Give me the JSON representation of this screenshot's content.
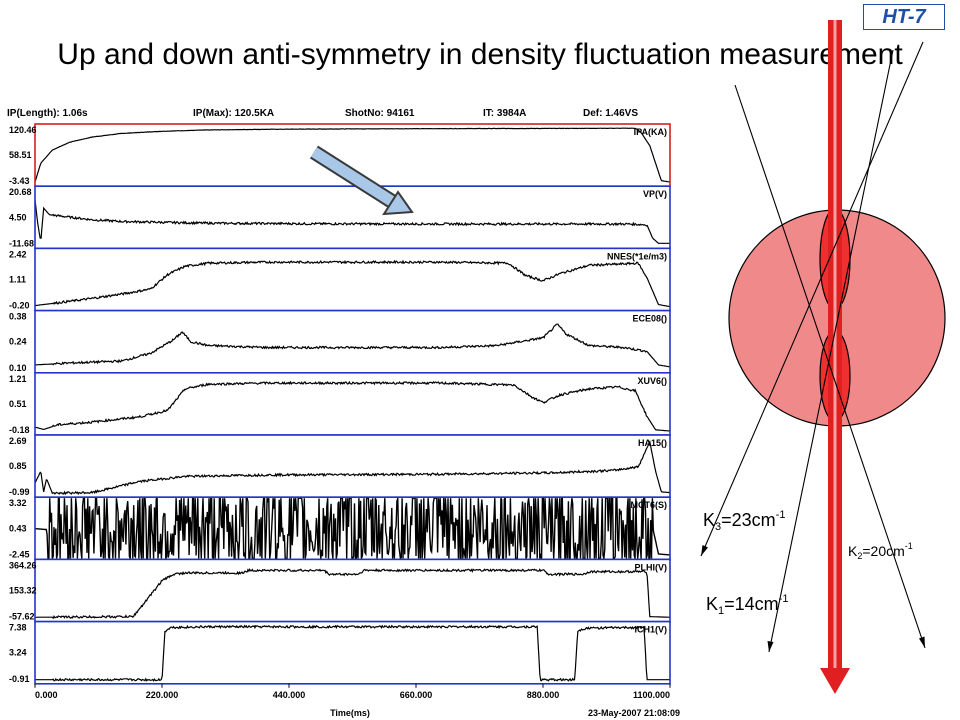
{
  "title": "Up  and down anti-symmetry in density fluctuation measurement",
  "badge": "HT-7",
  "header": {
    "ip_length": "IP(Length): 1.06s",
    "ip_max": "IP(Max): 120.5KA",
    "shot": "ShotNo: 94161",
    "it": "IT:  3984A",
    "def": "Def: 1.46VS"
  },
  "footer": {
    "xlabel": "Time(ms)",
    "timestamp": "23-May-2007 21:08:09"
  },
  "k_labels": {
    "k3": {
      "base": "K",
      "sub": "3",
      "rest": "=23cm",
      "sup": "-1"
    },
    "k2": {
      "base": "K",
      "sub": "2",
      "rest": "=20cm",
      "sup": "-1"
    },
    "k1": {
      "base": "K",
      "sub": "1",
      "rest": "=14cm",
      "sup": "-1"
    }
  },
  "colors": {
    "highlight_frame": "#d42020",
    "panel_frame": "#2434c8",
    "beam": "#e02020",
    "plasma_fill": "#f08a8a",
    "arrow": "#a9c8e8"
  },
  "chart_data": {
    "type": "line",
    "x_ticks": [
      "0.000",
      "220.000",
      "440.000",
      "660.000",
      "880.000",
      "1100.000"
    ],
    "xlim": [
      0,
      1100
    ],
    "xlabel": "Time(ms)",
    "panels": [
      {
        "channel": "IPA(KA)",
        "ticks": [
          "120.46",
          "58.51",
          "-3.43"
        ],
        "ylim": [
          -3.43,
          120.46
        ],
        "highlight": true,
        "points": [
          [
            0,
            -3
          ],
          [
            10,
            40
          ],
          [
            30,
            70
          ],
          [
            60,
            88
          ],
          [
            100,
            100
          ],
          [
            150,
            108
          ],
          [
            220,
            113
          ],
          [
            300,
            116
          ],
          [
            400,
            117.5
          ],
          [
            550,
            118.5
          ],
          [
            700,
            119
          ],
          [
            900,
            119.5
          ],
          [
            1040,
            120
          ],
          [
            1050,
            110
          ],
          [
            1065,
            80
          ],
          [
            1075,
            40
          ],
          [
            1085,
            0
          ],
          [
            1100,
            -3
          ]
        ]
      },
      {
        "channel": "VP(V)",
        "ticks": [
          "20.68",
          "4.50",
          "-11.68"
        ],
        "ylim": [
          -11.68,
          20.68
        ],
        "points": [
          [
            0,
            15
          ],
          [
            5,
            0
          ],
          [
            10,
            -10
          ],
          [
            15,
            10
          ],
          [
            25,
            6
          ],
          [
            50,
            5
          ],
          [
            100,
            3
          ],
          [
            150,
            2
          ],
          [
            220,
            1.5
          ],
          [
            300,
            1
          ],
          [
            500,
            0.6
          ],
          [
            800,
            0.5
          ],
          [
            1030,
            0.5
          ],
          [
            1060,
            0
          ],
          [
            1070,
            -8
          ],
          [
            1080,
            -11
          ],
          [
            1100,
            -11
          ]
        ]
      },
      {
        "channel": "NNES(*1e/m3)",
        "ticks": [
          "2.42",
          "1.11",
          "-0.20"
        ],
        "ylim": [
          -0.2,
          2.42
        ],
        "points": [
          [
            0,
            -0.15
          ],
          [
            30,
            -0.05
          ],
          [
            100,
            0.2
          ],
          [
            160,
            0.45
          ],
          [
            200,
            0.65
          ],
          [
            230,
            1.35
          ],
          [
            260,
            1.75
          ],
          [
            300,
            1.9
          ],
          [
            400,
            1.95
          ],
          [
            700,
            1.95
          ],
          [
            820,
            1.9
          ],
          [
            850,
            1.3
          ],
          [
            880,
            1.05
          ],
          [
            910,
            1.4
          ],
          [
            960,
            1.8
          ],
          [
            1010,
            1.85
          ],
          [
            1045,
            1.9
          ],
          [
            1060,
            1.2
          ],
          [
            1080,
            -0.1
          ],
          [
            1100,
            -0.2
          ]
        ]
      },
      {
        "channel": "ECE08()",
        "ticks": [
          "0.38",
          "0.24",
          "0.10"
        ],
        "ylim": [
          0.1,
          0.38
        ],
        "points": [
          [
            0,
            0.12
          ],
          [
            60,
            0.13
          ],
          [
            150,
            0.14
          ],
          [
            200,
            0.18
          ],
          [
            240,
            0.25
          ],
          [
            255,
            0.29
          ],
          [
            270,
            0.24
          ],
          [
            300,
            0.22
          ],
          [
            400,
            0.21
          ],
          [
            700,
            0.21
          ],
          [
            800,
            0.22
          ],
          [
            880,
            0.26
          ],
          [
            905,
            0.33
          ],
          [
            920,
            0.28
          ],
          [
            960,
            0.22
          ],
          [
            1020,
            0.21
          ],
          [
            1060,
            0.19
          ],
          [
            1080,
            0.12
          ],
          [
            1100,
            0.11
          ]
        ]
      },
      {
        "channel": "XUV6()",
        "ticks": [
          "1.21",
          "0.51",
          "-0.18"
        ],
        "ylim": [
          -0.18,
          1.21
        ],
        "points": [
          [
            0,
            -0.08
          ],
          [
            15,
            -0.14
          ],
          [
            40,
            -0.02
          ],
          [
            100,
            0.05
          ],
          [
            180,
            0.18
          ],
          [
            230,
            0.35
          ],
          [
            260,
            0.9
          ],
          [
            300,
            1.02
          ],
          [
            400,
            1.05
          ],
          [
            700,
            1.05
          ],
          [
            830,
            1.0
          ],
          [
            860,
            0.7
          ],
          [
            880,
            0.55
          ],
          [
            910,
            0.75
          ],
          [
            960,
            0.9
          ],
          [
            1010,
            0.95
          ],
          [
            1040,
            0.85
          ],
          [
            1060,
            0.2
          ],
          [
            1075,
            -0.15
          ],
          [
            1100,
            -0.18
          ]
        ]
      },
      {
        "channel": "HA15()",
        "ticks": [
          "2.69",
          "0.85",
          "-0.99"
        ],
        "ylim": [
          -0.99,
          2.69
        ],
        "points": [
          [
            0,
            -0.3
          ],
          [
            10,
            0.5
          ],
          [
            15,
            -0.9
          ],
          [
            20,
            0
          ],
          [
            30,
            -0.99
          ],
          [
            100,
            -0.95
          ],
          [
            180,
            -0.2
          ],
          [
            260,
            0.15
          ],
          [
            400,
            0.25
          ],
          [
            700,
            0.3
          ],
          [
            900,
            0.4
          ],
          [
            1000,
            0.55
          ],
          [
            1045,
            0.8
          ],
          [
            1065,
            2.5
          ],
          [
            1075,
            0.5
          ],
          [
            1085,
            -0.9
          ],
          [
            1100,
            -0.95
          ]
        ]
      },
      {
        "channel": "MCT6(S)",
        "ticks": [
          "3.32",
          "0.43",
          "-2.45"
        ],
        "ylim": [
          -2.45,
          3.32
        ],
        "points": [
          [
            0,
            0.4
          ],
          [
            20,
            0.3
          ],
          [
            100,
            0.45
          ],
          [
            300,
            0.45
          ],
          [
            600,
            0.45
          ],
          [
            900,
            0.45
          ],
          [
            1050,
            0.45
          ],
          [
            1070,
            0.5
          ],
          [
            1080,
            -2.3
          ],
          [
            1100,
            -2.4
          ]
        ]
      },
      {
        "channel": "PLHI(V)",
        "ticks": [
          "364.26",
          "153.32",
          "-57.62"
        ],
        "ylim": [
          -57.62,
          364.26
        ],
        "points": [
          [
            0,
            -55
          ],
          [
            170,
            -50
          ],
          [
            190,
            60
          ],
          [
            220,
            230
          ],
          [
            240,
            280
          ],
          [
            260,
            290
          ],
          [
            360,
            290
          ],
          [
            370,
            310
          ],
          [
            500,
            310
          ],
          [
            510,
            280
          ],
          [
            560,
            280
          ],
          [
            570,
            310
          ],
          [
            880,
            310
          ],
          [
            890,
            280
          ],
          [
            950,
            280
          ],
          [
            960,
            300
          ],
          [
            1060,
            300
          ],
          [
            1065,
            -50
          ],
          [
            1100,
            -55
          ]
        ]
      },
      {
        "channel": "ICH1(V)",
        "ticks": [
          "7.38",
          "3.24",
          "-0.91"
        ],
        "ylim": [
          -0.91,
          7.38
        ],
        "points": [
          [
            0,
            -0.9
          ],
          [
            220,
            -0.9
          ],
          [
            225,
            6.5
          ],
          [
            235,
            7.1
          ],
          [
            300,
            7.2
          ],
          [
            870,
            7.2
          ],
          [
            875,
            -0.9
          ],
          [
            935,
            -0.9
          ],
          [
            940,
            6.6
          ],
          [
            955,
            7.0
          ],
          [
            1055,
            7.1
          ],
          [
            1060,
            -0.9
          ],
          [
            1100,
            -0.9
          ]
        ]
      }
    ]
  }
}
